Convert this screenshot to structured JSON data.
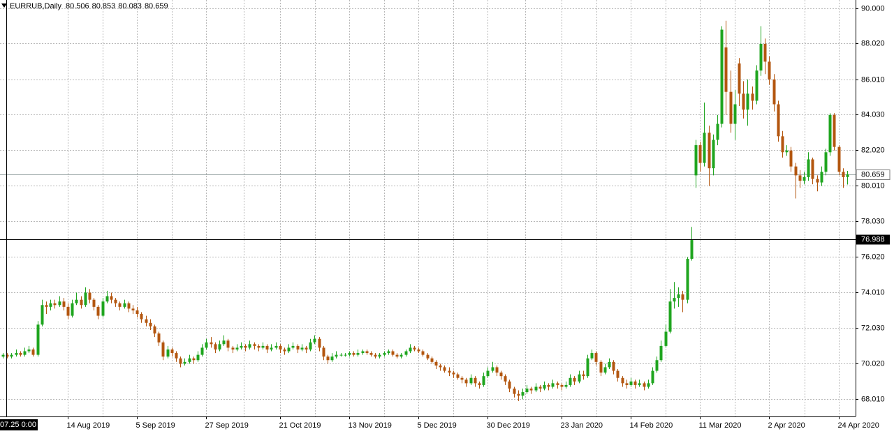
{
  "chart_data": {
    "type": "candlestick",
    "title": "EURRUB,Daily",
    "up_color": "#1fa51f",
    "down_color": "#b3560f",
    "grid": true,
    "ylim": [
      67.03,
      90.47
    ],
    "yticks": [
      {
        "value": 90,
        "label": "90.000"
      },
      {
        "value": 88.02,
        "label": "88.020"
      },
      {
        "value": 86.01,
        "label": "86.010"
      },
      {
        "value": 84.03,
        "label": "84.030"
      },
      {
        "value": 82.02,
        "label": "82.020"
      },
      {
        "value": 80.01,
        "label": "80.010"
      },
      {
        "value": 78.03,
        "label": "78.030"
      },
      {
        "value": 76.02,
        "label": "76.020"
      },
      {
        "value": 74.01,
        "label": "74.010"
      },
      {
        "value": 72.03,
        "label": "72.030"
      },
      {
        "value": 70.02,
        "label": "70.020"
      },
      {
        "value": 68.01,
        "label": "68.010"
      }
    ],
    "crosshair": {
      "price": 76.988,
      "time": "07.25 0:00"
    },
    "categories": [
      null,
      null,
      null,
      null,
      null,
      null,
      null,
      null,
      null,
      null,
      null,
      null,
      null,
      null,
      null,
      "14 Aug 2019",
      null,
      null,
      null,
      null,
      null,
      null,
      null,
      null,
      null,
      null,
      null,
      null,
      null,
      null,
      null,
      "5 Sep 2019",
      null,
      null,
      null,
      null,
      null,
      null,
      null,
      null,
      null,
      null,
      null,
      null,
      null,
      null,
      null,
      "27 Sep 2019",
      null,
      null,
      null,
      null,
      null,
      null,
      null,
      null,
      null,
      null,
      null,
      null,
      null,
      null,
      null,
      null,
      "21 Oct 2019",
      null,
      null,
      null,
      null,
      null,
      null,
      null,
      null,
      null,
      null,
      null,
      null,
      null,
      null,
      null,
      "13 Nov 2019",
      null,
      null,
      null,
      null,
      null,
      null,
      null,
      null,
      null,
      null,
      null,
      null,
      null,
      null,
      null,
      "5 Dec 2019",
      null,
      null,
      null,
      null,
      null,
      null,
      null,
      null,
      null,
      null,
      null,
      null,
      null,
      null,
      null,
      "30 Dec 2019",
      null,
      null,
      null,
      null,
      null,
      null,
      null,
      null,
      null,
      null,
      null,
      null,
      null,
      null,
      null,
      null,
      "23 Jan 2020",
      null,
      null,
      null,
      null,
      null,
      null,
      null,
      null,
      null,
      null,
      null,
      null,
      null,
      null,
      null,
      "14 Feb 2020",
      null,
      null,
      null,
      null,
      null,
      null,
      null,
      null,
      null,
      null,
      null,
      null,
      null,
      null,
      null,
      "11 Mar 2020",
      null,
      null,
      null,
      null,
      null,
      null,
      null,
      null,
      null,
      null,
      null,
      null,
      null,
      null,
      null,
      "2 Apr 2020",
      null,
      null,
      null,
      null,
      null,
      null,
      null,
      null,
      null,
      null,
      null,
      null,
      null,
      null,
      null,
      "24 Apr 2020",
      null,
      null
    ],
    "ohlc": [
      [
        70.4,
        70.6,
        70.3,
        70.5
      ],
      [
        70.5,
        70.6,
        70.3,
        70.4
      ],
      [
        70.4,
        70.6,
        70.3,
        70.5
      ],
      [
        70.5,
        70.8,
        70.4,
        70.6
      ],
      [
        70.6,
        70.7,
        70.4,
        70.5
      ],
      [
        70.5,
        70.9,
        70.4,
        70.7
      ],
      [
        70.7,
        71.0,
        70.6,
        70.8
      ],
      [
        70.8,
        70.9,
        70.4,
        70.5
      ],
      [
        70.5,
        72.4,
        70.4,
        72.2
      ],
      [
        72.2,
        73.6,
        72.1,
        73.3
      ],
      [
        73.3,
        73.5,
        72.8,
        73.2
      ],
      [
        73.2,
        73.6,
        73.0,
        73.4
      ],
      [
        73.4,
        73.6,
        73.1,
        73.3
      ],
      [
        73.3,
        73.8,
        73.2,
        73.5
      ],
      [
        73.5,
        73.7,
        73.0,
        73.2
      ],
      [
        73.2,
        73.4,
        72.5,
        72.7
      ],
      [
        72.7,
        73.6,
        72.6,
        73.4
      ],
      [
        73.4,
        74.0,
        73.3,
        73.6
      ],
      [
        73.6,
        73.8,
        73.1,
        73.3
      ],
      [
        73.3,
        74.3,
        73.2,
        74.0
      ],
      [
        74.0,
        74.2,
        73.4,
        73.6
      ],
      [
        73.6,
        73.7,
        73.0,
        73.2
      ],
      [
        73.2,
        73.3,
        72.5,
        72.7
      ],
      [
        72.7,
        73.7,
        72.6,
        73.5
      ],
      [
        73.5,
        74.1,
        73.4,
        73.8
      ],
      [
        73.8,
        74.0,
        73.4,
        73.6
      ],
      [
        73.6,
        73.7,
        73.2,
        73.4
      ],
      [
        73.4,
        73.5,
        73.0,
        73.2
      ],
      [
        73.2,
        73.6,
        73.1,
        73.4
      ],
      [
        73.4,
        73.5,
        72.9,
        73.1
      ],
      [
        73.1,
        73.3,
        72.8,
        73.0
      ],
      [
        73.0,
        73.2,
        72.6,
        72.8
      ],
      [
        72.8,
        72.9,
        72.3,
        72.5
      ],
      [
        72.5,
        72.7,
        72.1,
        72.3
      ],
      [
        72.3,
        72.5,
        71.9,
        72.1
      ],
      [
        72.1,
        72.2,
        71.5,
        71.7
      ],
      [
        71.7,
        71.8,
        71.0,
        71.2
      ],
      [
        71.2,
        71.3,
        70.2,
        70.4
      ],
      [
        70.4,
        71.0,
        70.3,
        70.8
      ],
      [
        70.8,
        70.9,
        70.4,
        70.6
      ],
      [
        70.6,
        70.7,
        70.1,
        70.3
      ],
      [
        70.3,
        70.4,
        69.8,
        70.0
      ],
      [
        70.0,
        70.3,
        69.9,
        70.1
      ],
      [
        70.1,
        70.5,
        70.0,
        70.3
      ],
      [
        70.3,
        70.4,
        70.0,
        70.2
      ],
      [
        70.2,
        70.7,
        70.1,
        70.5
      ],
      [
        70.5,
        71.1,
        70.4,
        70.9
      ],
      [
        70.9,
        71.4,
        70.8,
        71.2
      ],
      [
        71.2,
        71.5,
        70.9,
        71.1
      ],
      [
        71.1,
        71.2,
        70.6,
        70.8
      ],
      [
        70.8,
        71.3,
        70.7,
        71.1
      ],
      [
        71.1,
        71.6,
        71.0,
        71.3
      ],
      [
        71.3,
        71.4,
        70.7,
        70.9
      ],
      [
        70.9,
        71.0,
        70.6,
        70.8
      ],
      [
        70.8,
        71.1,
        70.7,
        70.9
      ],
      [
        70.9,
        71.2,
        70.8,
        71.0
      ],
      [
        71.0,
        71.1,
        70.7,
        70.9
      ],
      [
        70.9,
        71.3,
        70.8,
        71.1
      ],
      [
        71.1,
        71.2,
        70.8,
        71.0
      ],
      [
        71.0,
        71.1,
        70.7,
        70.9
      ],
      [
        70.9,
        71.2,
        70.8,
        71.0
      ],
      [
        71.0,
        71.1,
        70.6,
        70.8
      ],
      [
        70.8,
        71.1,
        70.7,
        70.9
      ],
      [
        70.9,
        71.2,
        70.8,
        71.0
      ],
      [
        71.0,
        71.1,
        70.6,
        70.8
      ],
      [
        70.8,
        70.9,
        70.5,
        70.7
      ],
      [
        70.7,
        71.1,
        70.6,
        70.9
      ],
      [
        70.9,
        71.2,
        70.8,
        71.0
      ],
      [
        71.0,
        71.1,
        70.6,
        70.8
      ],
      [
        70.8,
        71.1,
        70.7,
        70.9
      ],
      [
        70.9,
        71.0,
        70.6,
        70.8
      ],
      [
        70.8,
        71.4,
        70.7,
        71.2
      ],
      [
        71.2,
        71.6,
        71.1,
        71.4
      ],
      [
        71.4,
        71.5,
        70.7,
        70.9
      ],
      [
        70.9,
        71.0,
        70.2,
        70.4
      ],
      [
        70.4,
        70.5,
        70.0,
        70.2
      ],
      [
        70.2,
        70.6,
        70.1,
        70.4
      ],
      [
        70.4,
        70.7,
        70.3,
        70.5
      ],
      [
        70.5,
        70.6,
        70.4,
        70.5
      ],
      [
        70.5,
        70.6,
        70.4,
        70.5
      ],
      [
        70.5,
        70.7,
        70.4,
        70.6
      ],
      [
        70.6,
        70.7,
        70.4,
        70.5
      ],
      [
        70.5,
        70.8,
        70.4,
        70.6
      ],
      [
        70.6,
        70.8,
        70.5,
        70.7
      ],
      [
        70.7,
        70.8,
        70.5,
        70.6
      ],
      [
        70.6,
        70.7,
        70.4,
        70.5
      ],
      [
        70.5,
        70.6,
        70.3,
        70.4
      ],
      [
        70.4,
        70.6,
        70.3,
        70.5
      ],
      [
        70.5,
        70.7,
        70.4,
        70.6
      ],
      [
        70.6,
        70.8,
        70.5,
        70.7
      ],
      [
        70.7,
        70.8,
        70.4,
        70.5
      ],
      [
        70.5,
        70.6,
        70.3,
        70.4
      ],
      [
        70.4,
        70.6,
        70.3,
        70.5
      ],
      [
        70.5,
        70.8,
        70.4,
        70.7
      ],
      [
        70.7,
        71.1,
        70.6,
        70.9
      ],
      [
        70.9,
        71.0,
        70.7,
        70.8
      ],
      [
        70.8,
        70.9,
        70.6,
        70.7
      ],
      [
        70.7,
        70.8,
        70.4,
        70.5
      ],
      [
        70.5,
        70.6,
        70.2,
        70.3
      ],
      [
        70.3,
        70.4,
        70.0,
        70.1
      ],
      [
        70.1,
        70.2,
        69.7,
        69.9
      ],
      [
        69.9,
        70.0,
        69.6,
        69.8
      ],
      [
        69.8,
        69.9,
        69.5,
        69.6
      ],
      [
        69.6,
        69.8,
        69.3,
        69.5
      ],
      [
        69.5,
        69.6,
        69.2,
        69.4
      ],
      [
        69.4,
        69.5,
        69.1,
        69.2
      ],
      [
        69.2,
        69.3,
        68.9,
        69.1
      ],
      [
        69.1,
        69.2,
        68.7,
        68.9
      ],
      [
        68.9,
        69.4,
        68.8,
        69.2
      ],
      [
        69.2,
        69.3,
        68.7,
        68.9
      ],
      [
        68.9,
        69.0,
        68.6,
        68.8
      ],
      [
        68.8,
        69.5,
        68.7,
        69.3
      ],
      [
        69.3,
        69.8,
        69.2,
        69.6
      ],
      [
        69.6,
        70.1,
        69.5,
        69.8
      ],
      [
        69.8,
        69.9,
        69.3,
        69.5
      ],
      [
        69.5,
        69.6,
        69.1,
        69.3
      ],
      [
        69.3,
        69.4,
        68.8,
        69.0
      ],
      [
        69.0,
        69.1,
        68.4,
        68.6
      ],
      [
        68.6,
        68.7,
        68.1,
        68.3
      ],
      [
        68.3,
        68.5,
        67.9,
        68.2
      ],
      [
        68.2,
        68.6,
        68.0,
        68.4
      ],
      [
        68.4,
        68.8,
        68.3,
        68.6
      ],
      [
        68.6,
        68.7,
        68.3,
        68.5
      ],
      [
        68.5,
        68.9,
        68.4,
        68.7
      ],
      [
        68.7,
        68.8,
        68.4,
        68.6
      ],
      [
        68.6,
        69.0,
        68.5,
        68.8
      ],
      [
        68.8,
        68.9,
        68.5,
        68.7
      ],
      [
        68.7,
        69.1,
        68.6,
        68.9
      ],
      [
        68.9,
        69.0,
        68.6,
        68.8
      ],
      [
        68.8,
        68.9,
        68.5,
        68.7
      ],
      [
        68.7,
        69.0,
        68.6,
        68.8
      ],
      [
        68.8,
        69.4,
        68.7,
        69.2
      ],
      [
        69.2,
        69.3,
        68.8,
        69.0
      ],
      [
        69.0,
        69.6,
        68.9,
        69.4
      ],
      [
        69.4,
        69.6,
        69.1,
        69.3
      ],
      [
        69.3,
        70.5,
        69.2,
        70.3
      ],
      [
        70.3,
        70.8,
        70.2,
        70.6
      ],
      [
        70.6,
        70.7,
        69.9,
        70.1
      ],
      [
        70.1,
        70.2,
        69.3,
        69.5
      ],
      [
        69.5,
        70.0,
        69.4,
        69.8
      ],
      [
        69.8,
        70.3,
        69.7,
        70.1
      ],
      [
        70.1,
        70.2,
        69.4,
        69.6
      ],
      [
        69.6,
        69.7,
        69.0,
        69.2
      ],
      [
        69.2,
        69.3,
        68.7,
        68.9
      ],
      [
        68.9,
        69.1,
        68.6,
        68.8
      ],
      [
        68.8,
        69.2,
        68.7,
        69.0
      ],
      [
        69.0,
        69.1,
        68.6,
        68.8
      ],
      [
        68.8,
        69.1,
        68.7,
        68.9
      ],
      [
        68.9,
        69.0,
        68.5,
        68.7
      ],
      [
        68.7,
        69.1,
        68.6,
        68.9
      ],
      [
        68.9,
        69.8,
        68.8,
        69.6
      ],
      [
        69.6,
        70.4,
        69.5,
        70.2
      ],
      [
        70.2,
        71.3,
        70.1,
        71.0
      ],
      [
        71.0,
        72.2,
        70.9,
        71.8
      ],
      [
        71.8,
        74.2,
        71.7,
        73.5
      ],
      [
        73.5,
        74.6,
        73.1,
        73.7
      ],
      [
        73.7,
        74.3,
        73.2,
        73.9
      ],
      [
        73.9,
        74.1,
        72.9,
        73.6
      ],
      [
        73.6,
        76.0,
        73.4,
        75.9
      ],
      [
        75.9,
        77.7,
        75.8,
        77.0
      ],
      [
        80.6,
        82.6,
        79.9,
        82.3
      ],
      [
        82.3,
        82.5,
        80.8,
        81.3
      ],
      [
        81.3,
        84.7,
        81.1,
        83.0
      ],
      [
        83.0,
        83.4,
        80.0,
        81.0
      ],
      [
        81.0,
        82.9,
        80.6,
        82.6
      ],
      [
        82.6,
        84.0,
        82.3,
        83.5
      ],
      [
        83.5,
        89.0,
        83.3,
        88.8
      ],
      [
        87.8,
        89.3,
        84.0,
        85.3
      ],
      [
        85.3,
        86.5,
        83.0,
        83.5
      ],
      [
        83.5,
        85.4,
        82.6,
        84.6
      ],
      [
        86.9,
        87.2,
        84.5,
        85.2
      ],
      [
        85.2,
        85.9,
        83.8,
        84.3
      ],
      [
        84.3,
        86.0,
        83.4,
        85.2
      ],
      [
        85.2,
        85.6,
        84.3,
        84.8
      ],
      [
        84.8,
        86.8,
        84.6,
        86.5
      ],
      [
        86.5,
        89.0,
        86.2,
        88.0
      ],
      [
        88.0,
        88.3,
        86.3,
        87.0
      ],
      [
        87.0,
        87.3,
        85.7,
        86.0
      ],
      [
        86.0,
        86.3,
        84.2,
        84.6
      ],
      [
        84.6,
        84.8,
        82.5,
        82.8
      ],
      [
        82.8,
        83.1,
        81.6,
        81.9
      ],
      [
        81.9,
        82.3,
        81.7,
        82.0
      ],
      [
        82.0,
        82.2,
        80.8,
        81.1
      ],
      [
        81.1,
        81.3,
        79.3,
        80.6
      ],
      [
        80.6,
        80.9,
        79.9,
        80.3
      ],
      [
        80.3,
        80.8,
        80.1,
        80.5
      ],
      [
        80.5,
        81.9,
        80.3,
        81.5
      ],
      [
        81.5,
        81.6,
        80.1,
        80.4
      ],
      [
        80.4,
        80.6,
        79.7,
        80.2
      ],
      [
        80.2,
        81.1,
        80.0,
        80.8
      ],
      [
        80.8,
        82.1,
        80.6,
        81.9
      ],
      [
        81.9,
        84.1,
        81.7,
        84.0
      ],
      [
        84.0,
        84.1,
        82.0,
        82.2
      ],
      [
        82.2,
        82.3,
        80.6,
        80.8
      ],
      [
        80.8,
        81.0,
        79.9,
        80.5
      ],
      [
        80.506,
        80.853,
        80.083,
        80.659
      ]
    ]
  }
}
